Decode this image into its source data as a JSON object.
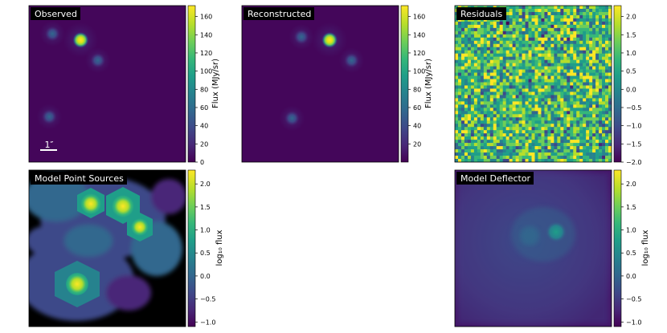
{
  "colormap": [
    "#440154",
    "#482878",
    "#3e4989",
    "#31688e",
    "#26828e",
    "#1f9e89",
    "#35b779",
    "#6ece58",
    "#b5de2b",
    "#fde725"
  ],
  "chart_data": [
    {
      "type": "heatmap",
      "title": "Observed",
      "colorbar_label": "Flux (MJy/sr)",
      "colorbar_ticks": [
        "0",
        "20",
        "40",
        "60",
        "80",
        "100",
        "120",
        "140",
        "160"
      ],
      "vmin": 0,
      "vmax": 172,
      "scalebar_label": "1″",
      "sources": [
        {
          "x": 0.33,
          "y": 0.22,
          "value": 172
        },
        {
          "x": 0.15,
          "y": 0.18,
          "value": 70
        },
        {
          "x": 0.44,
          "y": 0.35,
          "value": 80
        },
        {
          "x": 0.13,
          "y": 0.71,
          "value": 65
        }
      ]
    },
    {
      "type": "heatmap",
      "title": "Reconstructed",
      "colorbar_label": "Flux (MJy/sr)",
      "colorbar_ticks": [
        "20",
        "40",
        "60",
        "80",
        "100",
        "120",
        "140",
        "160"
      ],
      "vmin": 0,
      "vmax": 172,
      "sources": [
        {
          "x": 0.56,
          "y": 0.22,
          "value": 172
        },
        {
          "x": 0.38,
          "y": 0.2,
          "value": 75
        },
        {
          "x": 0.7,
          "y": 0.35,
          "value": 80
        },
        {
          "x": 0.32,
          "y": 0.72,
          "value": 62
        }
      ]
    },
    {
      "type": "heatmap",
      "title": "Residuals",
      "colorbar_label": "",
      "colorbar_ticks": [
        "2.0",
        "1.5",
        "1.0",
        "0.5",
        "0.0",
        "−0.5",
        "−1.0",
        "−1.5",
        "−2.0"
      ],
      "vmin": -2.0,
      "vmax": 2.3
    },
    {
      "type": "heatmap",
      "title": "Model Point Sources",
      "colorbar_label": "log₁₀ flux",
      "colorbar_ticks": [
        "2.0",
        "1.5",
        "1.0",
        "0.5",
        "0.0",
        "−0.5",
        "−1.0"
      ],
      "vmin": -1.1,
      "vmax": 2.3
    },
    {
      "type": "heatmap",
      "title": "Model Deflector",
      "colorbar_label": "log₁₀ flux",
      "colorbar_ticks": [
        "2.0",
        "1.5",
        "1.0",
        "0.5",
        "0.0",
        "−0.5",
        "−1.0"
      ],
      "vmin": -1.1,
      "vmax": 2.3
    }
  ]
}
